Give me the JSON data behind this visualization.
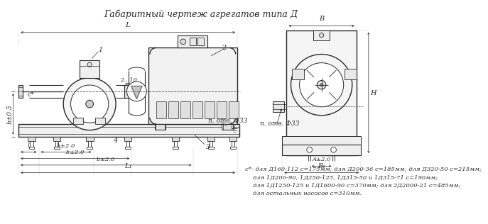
{
  "title": "Габаритный чертеж агрегатов типа Д",
  "bg_color": "#ffffff",
  "line_color": "#2a2a2a",
  "text_color": "#2a2a2a",
  "footnote_lines": [
    "с*- для Д160-112 с=175мм; для Д200-36 с=185мм; для Д320-50 с=215мм;",
    "для 1Д200-90, 1Д250-125, 1Д315-50 и 1Д315-71 с=190мм;",
    "для 1Д1250-125 и 1Д1600-90 с=370мм; для 2Д2000-21 с=485мм;",
    "для остальных насосов с=310мм."
  ]
}
